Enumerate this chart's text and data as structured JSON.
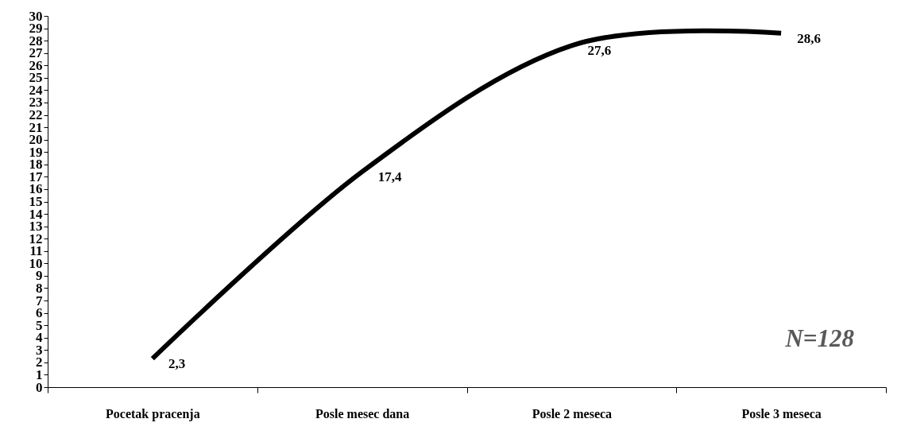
{
  "chart_data": {
    "type": "line",
    "categories": [
      "Pocetak pracenja",
      "Posle mesec dana",
      "Posle 2 meseca",
      "Posle 3 meseca"
    ],
    "series": [
      {
        "color": "#000000",
        "values": [
          2.3,
          17.4,
          27.6,
          28.6
        ],
        "value_labels": [
          "2,3",
          "17,4",
          "27,6",
          "28,6"
        ]
      }
    ],
    "ylim": [
      0,
      30
    ],
    "yticks": [
      0,
      1,
      2,
      3,
      4,
      5,
      6,
      7,
      8,
      9,
      10,
      11,
      12,
      13,
      14,
      15,
      16,
      17,
      18,
      19,
      20,
      21,
      22,
      23,
      24,
      25,
      26,
      27,
      28,
      29,
      30
    ],
    "grid": false,
    "marker": "none",
    "line_style": "solid",
    "annotations": [
      "N=128"
    ]
  }
}
